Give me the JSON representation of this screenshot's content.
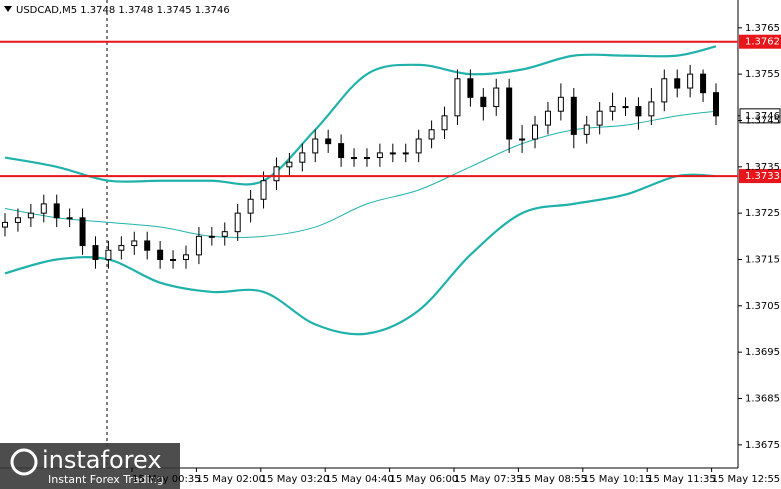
{
  "chart_data": {
    "type": "candlestick",
    "title": "USDCAD,M5  1.3748 1.3748 1.3745 1.3746",
    "ylim": [
      1.367,
      1.3771
    ],
    "yticks": [
      1.3765,
      1.3755,
      1.3745,
      1.3735,
      1.3725,
      1.3715,
      1.3705,
      1.3695,
      1.3685,
      1.3675
    ],
    "x_labels": [
      "15 May 00:35",
      "15 May 02:00",
      "15 May 03:20",
      "15 May 04:40",
      "15 May 06:00",
      "15 May 07:35",
      "15 May 08:55",
      "15 May 10:15",
      "15 May 11:35",
      "15 May 12:55"
    ],
    "candle_color": "#000000",
    "open": [
      1.3722,
      1.3723,
      1.3724,
      1.3725,
      1.3727,
      1.3724,
      1.3724,
      1.3718,
      1.3715,
      1.3717,
      1.3718,
      1.3719,
      1.3717,
      1.3715,
      1.3715,
      1.3716,
      1.372,
      1.372,
      1.3721,
      1.3725,
      1.3728,
      1.3732,
      1.3735,
      1.3736,
      1.3738,
      1.3741,
      1.374,
      1.3737,
      1.3737,
      1.3737,
      1.3738,
      1.3738,
      1.3738,
      1.3741,
      1.3743,
      1.3746,
      1.3754,
      1.375,
      1.3748,
      1.3752,
      1.3741,
      1.3741,
      1.3744,
      1.3747,
      1.375,
      1.3742,
      1.3744,
      1.3747,
      1.3748,
      1.3748,
      1.3746,
      1.3749,
      1.3754,
      1.3752,
      1.3755,
      1.3751
    ],
    "high": [
      1.3725,
      1.3726,
      1.3727,
      1.3729,
      1.3729,
      1.3726,
      1.3726,
      1.372,
      1.3719,
      1.372,
      1.3721,
      1.3721,
      1.3719,
      1.3717,
      1.3718,
      1.3722,
      1.3722,
      1.3723,
      1.3727,
      1.373,
      1.3734,
      1.3737,
      1.3738,
      1.374,
      1.3743,
      1.3743,
      1.3742,
      1.3739,
      1.3739,
      1.374,
      1.374,
      1.374,
      1.3743,
      1.3745,
      1.3748,
      1.3756,
      1.3756,
      1.3752,
      1.3754,
      1.3754,
      1.3744,
      1.3746,
      1.3749,
      1.3753,
      1.3752,
      1.3746,
      1.3749,
      1.3751,
      1.375,
      1.375,
      1.3752,
      1.3756,
      1.3756,
      1.3757,
      1.3756,
      1.3753
    ],
    "low": [
      1.372,
      1.3721,
      1.3722,
      1.3723,
      1.3722,
      1.3722,
      1.3716,
      1.3713,
      1.3713,
      1.3715,
      1.3716,
      1.3715,
      1.3713,
      1.3713,
      1.3713,
      1.3714,
      1.3718,
      1.3718,
      1.3719,
      1.3723,
      1.3726,
      1.373,
      1.3733,
      1.3734,
      1.3736,
      1.3738,
      1.3735,
      1.3735,
      1.3735,
      1.3735,
      1.3736,
      1.3736,
      1.3736,
      1.3739,
      1.3741,
      1.3744,
      1.3748,
      1.3745,
      1.3746,
      1.3738,
      1.3738,
      1.3739,
      1.3742,
      1.3745,
      1.3739,
      1.374,
      1.3742,
      1.3745,
      1.3746,
      1.3743,
      1.3744,
      1.3747,
      1.375,
      1.375,
      1.3749,
      1.3744
    ],
    "close": [
      1.3723,
      1.3724,
      1.3725,
      1.3727,
      1.3724,
      1.3724,
      1.3718,
      1.3715,
      1.3717,
      1.3718,
      1.3719,
      1.3717,
      1.3715,
      1.3715,
      1.3716,
      1.372,
      1.372,
      1.3721,
      1.3725,
      1.3728,
      1.3732,
      1.3735,
      1.3736,
      1.3738,
      1.3741,
      1.374,
      1.3737,
      1.3737,
      1.3737,
      1.3738,
      1.3738,
      1.3738,
      1.3741,
      1.3743,
      1.3746,
      1.3754,
      1.375,
      1.3748,
      1.3752,
      1.3741,
      1.3741,
      1.3744,
      1.3747,
      1.375,
      1.3742,
      1.3744,
      1.3747,
      1.3748,
      1.3748,
      1.3746,
      1.3749,
      1.3754,
      1.3752,
      1.3755,
      1.3751,
      1.3746
    ],
    "bands": {
      "color": "#20b2aa",
      "x": [
        0,
        4,
        8,
        12,
        16,
        20,
        24,
        28,
        32,
        36,
        40,
        44,
        48,
        52,
        55
      ],
      "upper": [
        1.3737,
        1.3735,
        1.3732,
        1.3732,
        1.3732,
        1.3732,
        1.3743,
        1.3755,
        1.3757,
        1.3755,
        1.3756,
        1.3759,
        1.3759,
        1.3759,
        1.3761
      ],
      "middle": [
        1.3726,
        1.3724,
        1.3723,
        1.3722,
        1.372,
        1.372,
        1.3722,
        1.3727,
        1.373,
        1.3735,
        1.374,
        1.3743,
        1.3744,
        1.3746,
        1.3747
      ],
      "lower": [
        1.3712,
        1.3715,
        1.3715,
        1.371,
        1.3708,
        1.3708,
        1.3701,
        1.3699,
        1.3704,
        1.3716,
        1.3725,
        1.3727,
        1.3729,
        1.3733,
        1.3733
      ]
    },
    "levels": [
      {
        "value": 1.3762,
        "color": "#e8151b"
      },
      {
        "value": 1.3733,
        "color": "#e8151b"
      }
    ],
    "last_price": 1.3746,
    "watermark": {
      "brand": "instaforex",
      "tagline": "Instant Forex Trading"
    }
  }
}
